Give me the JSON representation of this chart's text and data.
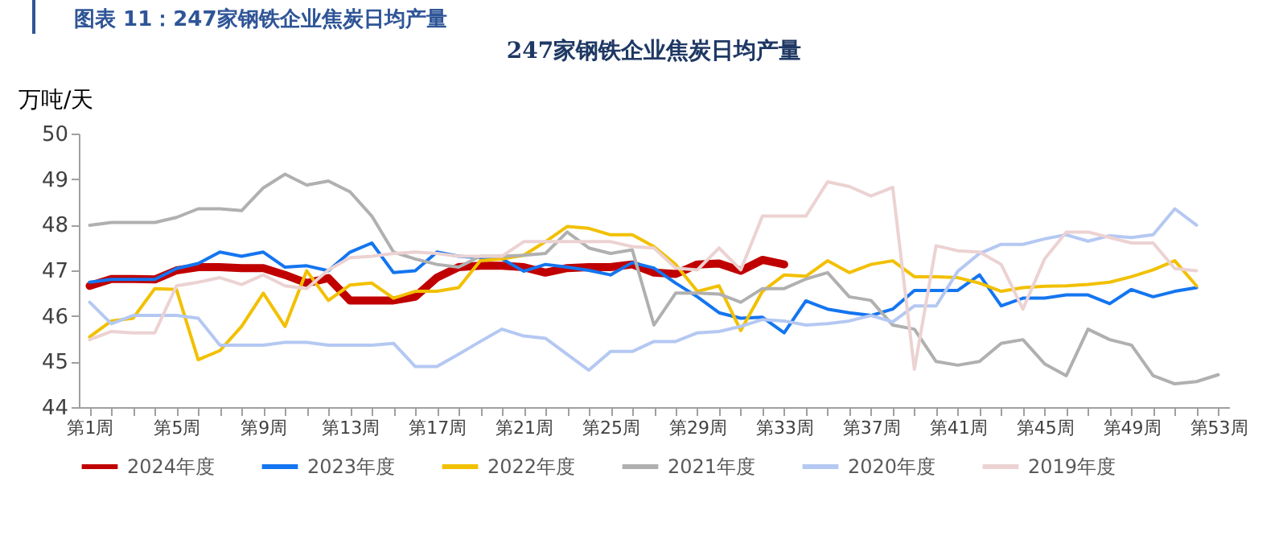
{
  "chart_data": {
    "type": "line",
    "title": "247家钢铁企业焦炭日均产量",
    "ylabel": "万吨/天",
    "annotations": [
      "图表 11：247家钢铁企业焦炭日均产量"
    ],
    "categories": [
      "第1周",
      null,
      null,
      null,
      "第5周",
      null,
      null,
      null,
      "第9周",
      null,
      null,
      null,
      "第13周",
      null,
      null,
      null,
      "第17周",
      null,
      null,
      null,
      "第21周",
      null,
      null,
      null,
      "第25周",
      null,
      null,
      null,
      "第29周",
      null,
      null,
      null,
      "第33周",
      null,
      null,
      null,
      "第37周",
      null,
      null,
      null,
      "第41周",
      null,
      null,
      null,
      "第45周",
      null,
      null,
      null,
      "第49周",
      null,
      null,
      null,
      "第53周"
    ],
    "ylim": [
      44,
      50
    ],
    "yticks": [
      44,
      45,
      46,
      47,
      48,
      49,
      50
    ],
    "grid": false,
    "legend": "bottom",
    "series": [
      {
        "name": "2024年度",
        "color": "#c00000",
        "values": [
          46.66,
          46.81,
          46.81,
          46.8,
          47.0,
          47.07,
          47.07,
          47.05,
          47.05,
          46.9,
          46.72,
          46.83,
          46.34,
          46.34,
          46.34,
          46.42,
          46.84,
          47.07,
          47.1,
          47.1,
          47.07,
          46.95,
          47.05,
          47.07,
          47.07,
          47.13,
          46.95,
          46.92,
          47.13,
          47.15,
          46.99,
          47.23,
          47.13,
          null,
          null,
          null,
          null,
          null,
          null,
          null,
          null,
          null,
          null,
          null,
          null,
          null,
          null,
          null,
          null,
          null,
          null,
          null,
          null
        ]
      },
      {
        "name": "2023年度",
        "color": "#1475f0",
        "values": [
          46.74,
          46.8,
          46.8,
          46.8,
          47.04,
          47.15,
          47.4,
          47.31,
          47.4,
          47.07,
          47.1,
          46.99,
          47.4,
          47.6,
          46.95,
          46.99,
          47.4,
          47.31,
          47.28,
          47.25,
          46.98,
          47.13,
          47.07,
          47.0,
          46.9,
          47.17,
          47.05,
          46.72,
          46.42,
          46.07,
          45.95,
          45.97,
          45.63,
          46.33,
          46.15,
          46.07,
          46.01,
          46.15,
          46.56,
          46.56,
          46.56,
          46.9,
          46.22,
          46.39,
          46.39,
          46.46,
          46.46,
          46.27,
          46.58,
          46.42,
          46.54,
          46.62,
          null
        ]
      },
      {
        "name": "2022年度",
        "color": "#f2c000",
        "values": [
          45.54,
          45.89,
          45.95,
          46.6,
          46.58,
          45.04,
          45.24,
          45.77,
          46.5,
          45.77,
          46.99,
          46.34,
          46.68,
          46.72,
          46.39,
          46.54,
          46.54,
          46.62,
          47.21,
          47.25,
          47.33,
          47.63,
          47.96,
          47.92,
          47.78,
          47.78,
          47.52,
          47.13,
          46.54,
          46.66,
          45.68,
          46.54,
          46.9,
          46.87,
          47.21,
          46.95,
          47.13,
          47.21,
          46.86,
          46.86,
          46.84,
          46.72,
          46.54,
          46.62,
          46.65,
          46.66,
          46.69,
          46.74,
          46.86,
          47.01,
          47.21,
          46.66,
          null
        ]
      },
      {
        "name": "2021年度",
        "color": "#b0b0b0",
        "values": [
          47.99,
          48.05,
          48.05,
          48.05,
          48.16,
          48.35,
          48.35,
          48.31,
          48.81,
          49.11,
          48.87,
          48.96,
          48.72,
          48.19,
          47.4,
          47.25,
          47.13,
          47.07,
          47.31,
          47.31,
          47.33,
          47.37,
          47.84,
          47.49,
          47.37,
          47.45,
          45.8,
          46.5,
          46.5,
          46.48,
          46.3,
          46.6,
          46.6,
          46.81,
          46.95,
          46.42,
          46.34,
          45.8,
          45.71,
          45.0,
          44.92,
          45.0,
          45.4,
          45.48,
          44.95,
          44.69,
          45.71,
          45.48,
          45.36,
          44.69,
          44.51,
          44.56,
          44.71
        ]
      },
      {
        "name": "2020年度",
        "color": "#b4c8f2",
        "values": [
          46.3,
          45.83,
          46.01,
          46.01,
          46.01,
          45.95,
          45.36,
          45.36,
          45.36,
          45.42,
          45.42,
          45.36,
          45.36,
          45.36,
          45.4,
          44.89,
          44.89,
          45.16,
          45.44,
          45.71,
          45.56,
          45.51,
          45.16,
          44.81,
          45.22,
          45.22,
          45.44,
          45.44,
          45.63,
          45.66,
          45.77,
          45.92,
          45.89,
          45.8,
          45.83,
          45.89,
          46.01,
          45.87,
          46.22,
          46.22,
          46.98,
          47.37,
          47.57,
          47.57,
          47.69,
          47.78,
          47.64,
          47.76,
          47.72,
          47.78,
          48.35,
          47.99,
          null
        ]
      },
      {
        "name": "2019年度",
        "color": "#ecd2d2",
        "values": [
          45.48,
          45.66,
          45.63,
          45.63,
          46.66,
          46.74,
          46.84,
          46.69,
          46.9,
          46.66,
          46.6,
          47.01,
          47.28,
          47.31,
          47.37,
          47.4,
          47.37,
          47.31,
          47.31,
          47.31,
          47.63,
          47.63,
          47.63,
          47.63,
          47.63,
          47.52,
          47.49,
          47.05,
          47.01,
          47.49,
          47.01,
          48.19,
          48.19,
          48.19,
          48.94,
          48.84,
          48.63,
          48.82,
          44.83,
          47.54,
          47.43,
          47.4,
          47.13,
          46.15,
          47.25,
          47.84,
          47.84,
          47.72,
          47.6,
          47.6,
          47.04,
          46.99,
          null
        ]
      }
    ]
  }
}
